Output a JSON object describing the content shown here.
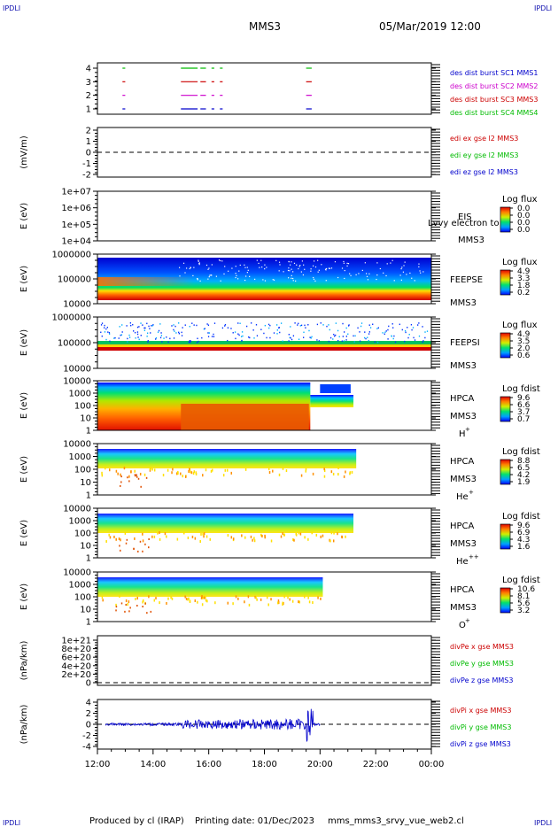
{
  "header": {
    "spacecraft": "MMS3",
    "datetime": "05/Mar/2019 12:00",
    "corner_text": "IPDLI"
  },
  "footer": {
    "produced_by": "Produced by cl (IRAP)",
    "printing_date": "Printing date: 01/Dec/2023",
    "filename": "mms_mms3_srvy_vue_web2.cl"
  },
  "chart_data": {
    "type": "multi-panel",
    "x_ticks": [
      "12:00",
      "14:00",
      "16:00",
      "18:00",
      "20:00",
      "22:00",
      "00:00"
    ],
    "x_range_hours": [
      12,
      24
    ],
    "panels": [
      {
        "id": "burst",
        "ylabel": "",
        "yticks": [
          "4",
          "3",
          "2",
          "1"
        ],
        "legend": [
          {
            "text": "des dist burst SC1 MMS1",
            "color": "#0000cc"
          },
          {
            "text": "des dist burst SC2 MMS2",
            "color": "#cc00cc"
          },
          {
            "text": "des dist burst SC3 MMS3",
            "color": "#cc0000"
          },
          {
            "text": "des dist burst SC4 MMS4",
            "color": "#00bb00"
          }
        ],
        "intervals_hours": [
          [
            12.9,
            13.0
          ],
          [
            15.0,
            15.6
          ],
          [
            15.7,
            15.9
          ],
          [
            16.1,
            16.2
          ],
          [
            16.4,
            16.5
          ],
          [
            19.5,
            19.7
          ]
        ]
      },
      {
        "id": "edi",
        "ylabel": "(mV/m)",
        "yticks": [
          "2",
          "1",
          "0",
          "-1",
          "-2"
        ],
        "legend": [
          {
            "text": "edi ex gse l2 MMS3",
            "color": "#cc0000"
          },
          {
            "text": "edi ey gse l2 MMS3",
            "color": "#00bb00"
          },
          {
            "text": "edi ez gse l2 MMS3",
            "color": "#0000cc"
          }
        ]
      },
      {
        "id": "eis",
        "ylabel": "E (eV)",
        "yticks": [
          "1e+07",
          "1e+06",
          "1e+05",
          "1e+04"
        ],
        "label_lines": [
          "EIS",
          "MMS3"
        ],
        "overlay_text": "Lvvy electron to",
        "colorbar_title": "Log flux",
        "colorbar_ticks": [
          "0.0",
          "0.0",
          "0.0",
          "0.0"
        ]
      },
      {
        "id": "feepse",
        "ylabel": "E (eV)",
        "yticks": [
          "1000000",
          "100000",
          "10000"
        ],
        "label_lines": [
          "FEEPSE",
          "MMS3"
        ],
        "colorbar_title": "Log flux",
        "colorbar_ticks": [
          "4.9",
          "3.3",
          "1.8",
          "0.2"
        ]
      },
      {
        "id": "feepsi",
        "ylabel": "E (eV)",
        "yticks": [
          "1000000",
          "100000",
          "10000"
        ],
        "label_lines": [
          "FEEPSI",
          "MMS3"
        ],
        "colorbar_title": "Log flux",
        "colorbar_ticks": [
          "4.9",
          "3.5",
          "2.0",
          "0.6"
        ]
      },
      {
        "id": "hpca-h",
        "ylabel": "E (eV)",
        "yticks": [
          "10000",
          "1000",
          "100",
          "10",
          "1"
        ],
        "label_lines": [
          "HPCA",
          "MMS3"
        ],
        "species": "H",
        "species_sup": "+",
        "colorbar_title": "Log fdist",
        "colorbar_ticks": [
          "9.6",
          "6.6",
          "3.7",
          "0.7"
        ]
      },
      {
        "id": "hpca-he",
        "ylabel": "E (eV)",
        "yticks": [
          "10000",
          "1000",
          "100",
          "10",
          "1"
        ],
        "label_lines": [
          "HPCA",
          "MMS3"
        ],
        "species": "He",
        "species_sup": "+",
        "colorbar_title": "Log fdist",
        "colorbar_ticks": [
          "8.8",
          "6.5",
          "4.2",
          "1.9"
        ]
      },
      {
        "id": "hpca-hepp",
        "ylabel": "E (eV)",
        "yticks": [
          "10000",
          "1000",
          "100",
          "10",
          "1"
        ],
        "label_lines": [
          "HPCA",
          "MMS3"
        ],
        "species": "He",
        "species_sup": "++",
        "colorbar_title": "Log fdist",
        "colorbar_ticks": [
          "9.6",
          "6.9",
          "4.3",
          "1.6"
        ]
      },
      {
        "id": "hpca-o",
        "ylabel": "E (eV)",
        "yticks": [
          "10000",
          "1000",
          "100",
          "10",
          "1"
        ],
        "label_lines": [
          "HPCA",
          "MMS3"
        ],
        "species": "O",
        "species_sup": "+",
        "colorbar_title": "Log fdist",
        "colorbar_ticks": [
          "10.6",
          "8.1",
          "5.6",
          "3.2"
        ]
      },
      {
        "id": "divpe",
        "ylabel": "(nPa/km)",
        "yticks": [
          "1e+21",
          "8e+20",
          "6e+20",
          "4e+20",
          "2e+20",
          "0"
        ],
        "legend": [
          {
            "text": "divPe x gse MMS3",
            "color": "#cc0000"
          },
          {
            "text": "divPe y gse MMS3",
            "color": "#00bb00"
          },
          {
            "text": "divPe z gse MMS3",
            "color": "#0000cc"
          }
        ]
      },
      {
        "id": "divpi",
        "ylabel": "(nPa/km)",
        "yticks": [
          "4",
          "2",
          "0",
          "-2",
          "-4"
        ],
        "legend": [
          {
            "text": "divPi x gse MMS3",
            "color": "#cc0000"
          },
          {
            "text": "divPi y gse MMS3",
            "color": "#00bb00"
          },
          {
            "text": "divPi z gse MMS3",
            "color": "#0000cc"
          }
        ]
      }
    ]
  }
}
